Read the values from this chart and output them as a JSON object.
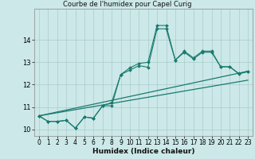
{
  "title": "Courbe de l'humidex pour Capel Curig",
  "xlabel": "Humidex (Indice chaleur)",
  "xlim": [
    -0.5,
    23.5
  ],
  "ylim": [
    9.7,
    15.4
  ],
  "yticks": [
    10,
    11,
    12,
    13,
    14
  ],
  "xticks": [
    0,
    1,
    2,
    3,
    4,
    5,
    6,
    7,
    8,
    9,
    10,
    11,
    12,
    13,
    14,
    15,
    16,
    17,
    18,
    19,
    20,
    21,
    22,
    23
  ],
  "bg_color": "#cce8e8",
  "line_color": "#1a7a6e",
  "grid_color": "#aacccc",
  "lines": [
    {
      "x": [
        0,
        1,
        2,
        3,
        4,
        5,
        6,
        7,
        8,
        9,
        10,
        11,
        12,
        13,
        14,
        15,
        16,
        17,
        18,
        19,
        20,
        21,
        22,
        23
      ],
      "y": [
        10.6,
        10.35,
        10.35,
        10.4,
        10.05,
        10.55,
        10.5,
        11.05,
        11.05,
        12.45,
        12.75,
        12.95,
        13.0,
        14.65,
        14.65,
        13.1,
        13.5,
        13.2,
        13.5,
        13.5,
        12.8,
        12.8,
        12.5,
        12.6
      ],
      "marker": true
    },
    {
      "x": [
        0,
        23
      ],
      "y": [
        10.6,
        12.6
      ],
      "marker": false
    },
    {
      "x": [
        0,
        23
      ],
      "y": [
        10.6,
        12.2
      ],
      "marker": false
    },
    {
      "x": [
        0,
        1,
        2,
        3,
        4,
        5,
        6,
        7,
        8,
        9,
        10,
        11,
        12,
        13,
        14,
        15,
        16,
        17,
        18,
        19,
        20,
        21,
        22,
        23
      ],
      "y": [
        10.6,
        10.35,
        10.35,
        10.4,
        10.05,
        10.55,
        10.5,
        11.05,
        11.2,
        12.45,
        12.65,
        12.85,
        12.78,
        14.5,
        14.5,
        13.1,
        13.45,
        13.15,
        13.45,
        13.45,
        12.8,
        12.8,
        12.48,
        12.58
      ],
      "marker": true
    }
  ],
  "tick_fontsize": 5.5,
  "xlabel_fontsize": 6.5
}
